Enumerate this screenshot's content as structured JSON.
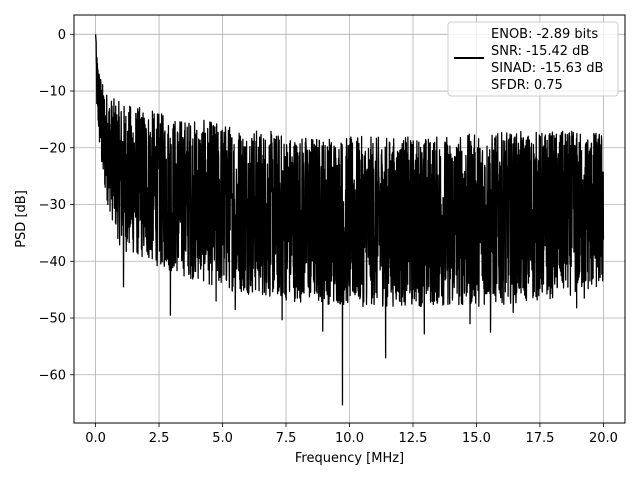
{
  "chart_data": {
    "type": "line",
    "xlabel": "Frequency [MHz]",
    "ylabel": "PSD [dB]",
    "xlim": [
      -0.85,
      20.85
    ],
    "ylim": [
      -68.5,
      3.4
    ],
    "xticks": [
      0.0,
      2.5,
      5.0,
      7.5,
      10.0,
      12.5,
      15.0,
      17.5,
      20.0
    ],
    "xtick_labels": [
      "0.0",
      "2.5",
      "5.0",
      "7.5",
      "10.0",
      "12.5",
      "15.0",
      "17.5",
      "20.0"
    ],
    "yticks": [
      0,
      -10,
      -20,
      -30,
      -40,
      -50,
      -60
    ],
    "ytick_labels": [
      "0",
      "−10",
      "−20",
      "−30",
      "−40",
      "−50",
      "−60"
    ],
    "grid": true,
    "legend_position": "top-right",
    "series_color": "#000000",
    "legend_lines": [
      "ENOB: -2.89 bits",
      "SNR: -15.42 dB",
      "SINAD: -15.63 dB",
      "SFDR: 0.75"
    ],
    "envelope": {
      "x": [
        0.0,
        0.05,
        0.15,
        0.3,
        0.6,
        1.0,
        2.0,
        3.0,
        5.0,
        7.5,
        10.0,
        12.5,
        15.0,
        17.5,
        20.0
      ],
      "upper": [
        0.0,
        -3.0,
        -6.0,
        -9.0,
        -11.0,
        -12.0,
        -13.0,
        -14.5,
        -15.5,
        -17.5,
        -18.0,
        -18.0,
        -17.5,
        -17.0,
        -17.0
      ],
      "lower": [
        -10.0,
        -14.0,
        -20.0,
        -27.0,
        -32.0,
        -38.0,
        -40.0,
        -42.0,
        -45.0,
        -47.0,
        -48.0,
        -48.0,
        -48.0,
        -47.0,
        -45.0
      ]
    },
    "spikes": [
      {
        "x": 9.72,
        "y": -65.3
      },
      {
        "x": 11.42,
        "y": -57.0
      },
      {
        "x": 7.35,
        "y": -50.3
      },
      {
        "x": 8.95,
        "y": -52.3
      },
      {
        "x": 14.75,
        "y": -51.0
      },
      {
        "x": 12.95,
        "y": -52.8
      },
      {
        "x": 15.55,
        "y": -52.5
      },
      {
        "x": 2.95,
        "y": -49.5
      },
      {
        "x": 5.5,
        "y": -48.5
      },
      {
        "x": 13.95,
        "y": -47.5
      },
      {
        "x": 16.45,
        "y": -49.0
      },
      {
        "x": 18.95,
        "y": -48.2
      },
      {
        "x": 10.55,
        "y": -44.5
      },
      {
        "x": 1.1,
        "y": -44.5
      },
      {
        "x": 19.25,
        "y": -46.5
      },
      {
        "x": 4.75,
        "y": -47.0
      },
      {
        "x": 7.95,
        "y": -46.5
      },
      {
        "x": 12.2,
        "y": -45.5
      }
    ]
  }
}
